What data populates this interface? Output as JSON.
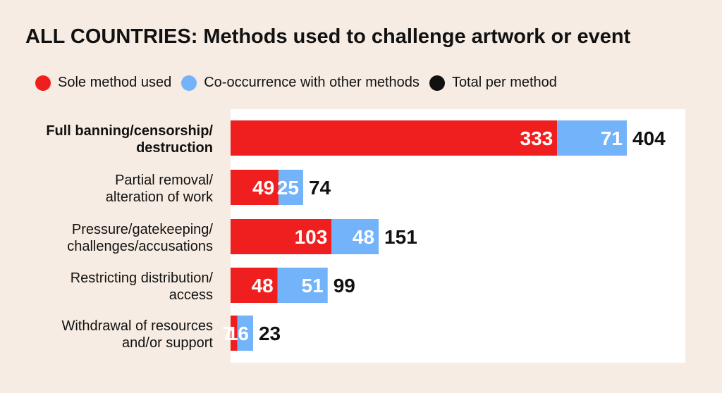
{
  "title": "ALL COUNTRIES: Methods used to challenge artwork or event",
  "legend": {
    "sole": "Sole method used",
    "co": "Co-occurrence with other methods",
    "total": "Total per method"
  },
  "colors": {
    "sole": "#f01f1f",
    "co": "#73b3fa",
    "total": "#111111",
    "background": "#f7ece3",
    "plot": "#ffffff"
  },
  "chart_data": {
    "type": "bar",
    "orientation": "horizontal",
    "stacked": true,
    "title": "ALL COUNTRIES: Methods used to challenge artwork or event",
    "legend_position": "top",
    "categories": [
      [
        "Full banning/censorship/",
        "destruction"
      ],
      [
        "Partial removal/",
        "alteration of work"
      ],
      [
        "Pressure/gatekeeping/",
        "challenges/accusations"
      ],
      [
        "Restricting distribution/",
        "access"
      ],
      [
        "Withdrawal of resources",
        "and/or support"
      ]
    ],
    "bold_categories": [
      0
    ],
    "series": [
      {
        "name": "Sole method used",
        "values": [
          333,
          49,
          103,
          48,
          7
        ]
      },
      {
        "name": "Co-occurrence with other methods",
        "values": [
          71,
          25,
          48,
          51,
          16
        ]
      }
    ],
    "totals": [
      404,
      74,
      151,
      99,
      23
    ],
    "totals_label": "Total per method",
    "xlim": [
      0,
      466
    ],
    "grid": false
  }
}
